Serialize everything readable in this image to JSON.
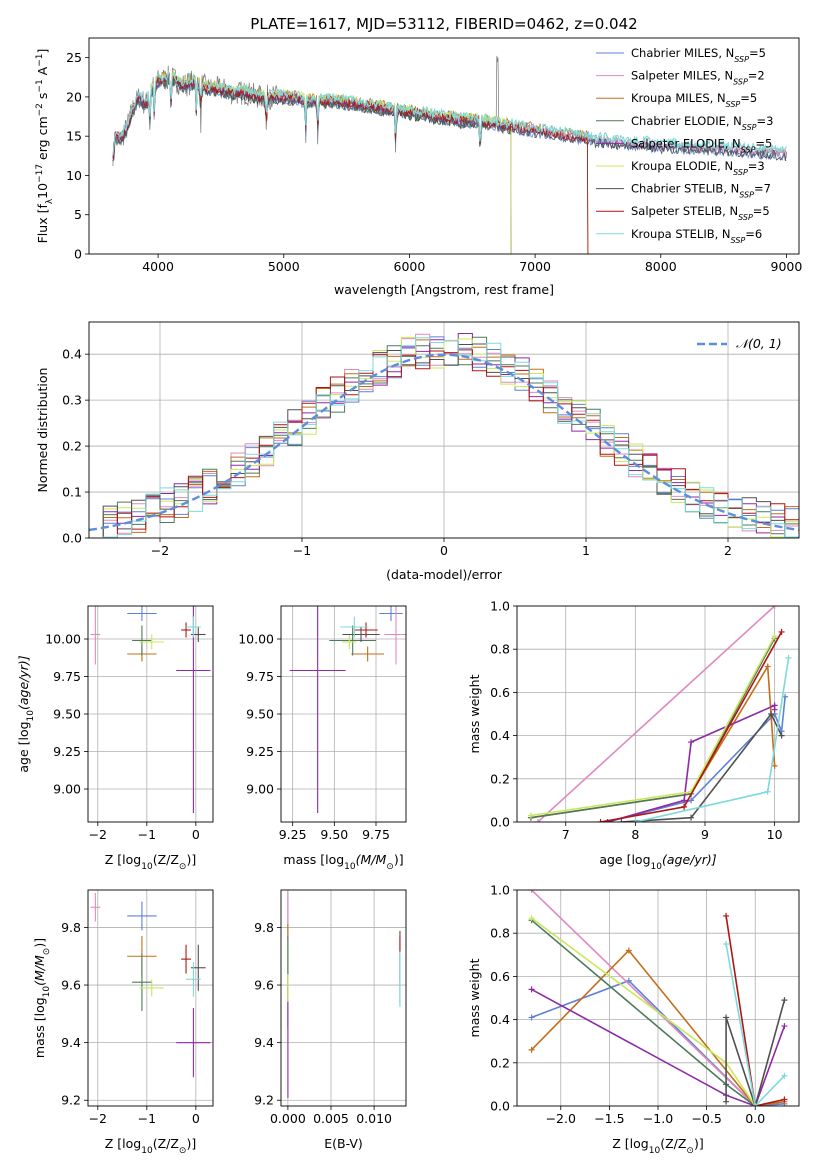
{
  "palette": {
    "chabrier_miles": "#5f82d6",
    "salpeter_miles": "#e08abf",
    "kroupa_miles": "#c46e19",
    "chabrier_elodie": "#4d7a5b",
    "salpeter_elodie": "#8e2aa6",
    "kroupa_elodie": "#c8e85a",
    "chabrier_stelib": "#505050",
    "salpeter_stelib": "#b01515",
    "kroupa_stelib": "#7fd9d9",
    "grid": "#b0b0b0",
    "gaussian": "#5b8fde"
  },
  "chart_data": [
    {
      "id": "spectrum",
      "type": "line",
      "title": "PLATE=1617, MJD=53112, FIBERID=0462, z=0.042",
      "xlabel": "wavelength [Angstrom, rest frame]",
      "ylabel": "Flux [f",
      "ylabel_sub": "λ",
      "ylabel_mid": "10",
      "ylabel_exp": "−17",
      "ylabel_end": " erg cm",
      "ylabel_exp2": "−2",
      "ylabel_s": " s",
      "ylabel_exp3": "−1",
      "ylabel_A": " A",
      "ylabel_exp4": "−1",
      "ylabel_close": "]",
      "xlim": [
        3450,
        9100
      ],
      "ylim": [
        0,
        27.5
      ],
      "xticks": [
        "4000",
        "5000",
        "6000",
        "7000",
        "8000",
        "9000"
      ],
      "yticks": [
        "0",
        "5",
        "10",
        "15",
        "20",
        "25"
      ],
      "grid": false,
      "legend_position": "top-right",
      "legend": [
        {
          "label": "Chabrier MILES, N",
          "sub": "SSP",
          "val": "=5",
          "color_key": "chabrier_miles"
        },
        {
          "label": "Salpeter MILES, N",
          "sub": "SSP",
          "val": "=2",
          "color_key": "salpeter_miles"
        },
        {
          "label": "Kroupa MILES, N",
          "sub": "SSP",
          "val": "=5",
          "color_key": "kroupa_miles"
        },
        {
          "label": "Chabrier ELODIE, N",
          "sub": "SSP",
          "val": "=3",
          "color_key": "chabrier_elodie"
        },
        {
          "label": "Salpeter ELODIE, N",
          "sub": "SSP",
          "val": "=5",
          "color_key": "salpeter_elodie"
        },
        {
          "label": "Kroupa ELODIE, N",
          "sub": "SSP",
          "val": "=3",
          "color_key": "kroupa_elodie"
        },
        {
          "label": "Chabrier STELIB, N",
          "sub": "SSP",
          "val": "=7",
          "color_key": "chabrier_stelib"
        },
        {
          "label": "Salpeter STELIB, N",
          "sub": "SSP",
          "val": "=5",
          "color_key": "salpeter_stelib"
        },
        {
          "label": "Kroupa STELIB, N",
          "sub": "SSP",
          "val": "=6",
          "color_key": "kroupa_stelib"
        }
      ],
      "data_series": {
        "observed": {
          "x": [
            3650,
            3700,
            3750,
            3800,
            3850,
            3900,
            3950,
            4000,
            4100,
            4200,
            4300,
            4400,
            4500,
            4600,
            4700,
            4800,
            4900,
            5000,
            5100,
            5200,
            5300,
            5400,
            5500,
            5600,
            5700,
            5800,
            5900,
            6000,
            6100,
            6200,
            6300,
            6400,
            6500,
            6600,
            6700,
            6800,
            6900,
            7000,
            7100,
            7200,
            7300,
            7400,
            7500,
            7600,
            7700,
            7800,
            7900,
            8000,
            8100,
            8200,
            8300,
            8400,
            8500,
            8600,
            8700,
            8800,
            8900,
            9000
          ],
          "y": [
            15.0,
            14.5,
            16.0,
            18.5,
            20.0,
            19.0,
            21.0,
            22.0,
            22.5,
            21.5,
            22.0,
            21.0,
            21.0,
            20.5,
            20.5,
            20.0,
            20.0,
            20.0,
            19.8,
            19.5,
            19.5,
            19.5,
            19.2,
            19.0,
            18.8,
            18.5,
            18.3,
            18.0,
            17.8,
            17.5,
            17.3,
            17.0,
            17.0,
            16.8,
            16.5,
            16.2,
            16.0,
            15.8,
            15.5,
            15.2,
            15.0,
            14.8,
            14.5,
            14.4,
            14.2,
            14.0,
            14.0,
            13.8,
            13.8,
            13.6,
            13.5,
            13.5,
            13.4,
            13.3,
            13.2,
            13.0,
            13.0,
            12.8
          ]
        }
      }
    },
    {
      "id": "residuals",
      "type": "histogram",
      "xlabel": "(data-model)/error",
      "ylabel": "Normed distribution",
      "xlim": [
        -2.5,
        2.5
      ],
      "ylim": [
        0,
        0.47
      ],
      "xticks": [
        "−2",
        "−1",
        "0",
        "1",
        "2"
      ],
      "yticks": [
        "0.0",
        "0.1",
        "0.2",
        "0.3",
        "0.4"
      ],
      "grid": true,
      "legend_position": "top-right",
      "legend_label": "𝒩(0, 1)"
    },
    {
      "id": "age-vs-Z",
      "type": "scatter",
      "xlabel": "Z [log",
      "xlabel_sub": "10",
      "xlabel_rest": "(Z/Z",
      "xlabel_sun": "⊙",
      "xlabel_close": ")]",
      "ylabel": "age  [log",
      "ylabel_sub": "10",
      "ylabel_rest": "(age/yr)]",
      "xlim": [
        -2.2,
        0.35
      ],
      "ylim": [
        8.78,
        10.22
      ],
      "xticks": [
        "−2",
        "−1",
        "0"
      ],
      "yticks": [
        "9.00",
        "9.25",
        "9.50",
        "9.75",
        "10.00"
      ],
      "grid": true
    },
    {
      "id": "age-vs-mass",
      "type": "scatter",
      "xlabel": "mass [log",
      "xlabel_sub": "10",
      "xlabel_rest": "(M/M",
      "xlabel_sun": "⊙",
      "xlabel_close": ")]",
      "xlim": [
        9.18,
        9.93
      ],
      "ylim": [
        8.78,
        10.22
      ],
      "xticks": [
        "9.25",
        "9.50",
        "9.75"
      ],
      "yticks": [
        "9.00",
        "9.25",
        "9.50",
        "9.75",
        "10.00"
      ],
      "grid": true
    },
    {
      "id": "massweight-vs-age",
      "type": "line",
      "xlabel": "age  [log",
      "xlabel_sub": "10",
      "xlabel_rest": "(age/yr)]",
      "ylabel": "mass weight",
      "xlim": [
        6.3,
        10.35
      ],
      "ylim": [
        0,
        1.0
      ],
      "xticks": [
        "7",
        "8",
        "9",
        "10"
      ],
      "yticks": [
        "0.0",
        "0.2",
        "0.4",
        "0.6",
        "0.8",
        "1.0"
      ],
      "grid": true
    },
    {
      "id": "mass-vs-Z",
      "type": "scatter",
      "xlabel": "Z [log",
      "xlabel_sub": "10",
      "xlabel_rest": "(Z/Z",
      "xlabel_sun": "⊙",
      "xlabel_close": ")]",
      "ylabel": "mass [log",
      "ylabel_sub": "10",
      "ylabel_rest": "(M/M",
      "ylabel_sun": "⊙",
      "ylabel_close": ")]",
      "xlim": [
        -2.2,
        0.35
      ],
      "ylim": [
        9.18,
        9.93
      ],
      "xticks": [
        "−2",
        "−1",
        "0"
      ],
      "yticks": [
        "9.2",
        "9.4",
        "9.6",
        "9.8"
      ],
      "grid": true
    },
    {
      "id": "mass-vs-ebv",
      "type": "scatter",
      "xlabel": "E(B-V)",
      "xlim": [
        -0.0008,
        0.0137
      ],
      "ylim": [
        9.18,
        9.93
      ],
      "xticks": [
        "0.000",
        "0.005",
        "0.010"
      ],
      "yticks": [
        "9.2",
        "9.4",
        "9.6",
        "9.8"
      ],
      "grid": true
    },
    {
      "id": "massweight-vs-Z",
      "type": "line",
      "xlabel": "Z [log",
      "xlabel_sub": "10",
      "xlabel_rest": "(Z/Z",
      "xlabel_sun": "⊙",
      "xlabel_close": ")]",
      "ylabel": "mass weight",
      "xlim": [
        -2.45,
        0.45
      ],
      "ylim": [
        0,
        1.0
      ],
      "xticks": [
        "−2.0",
        "−1.5",
        "−1.0",
        "−0.5",
        "0.0"
      ],
      "yticks": [
        "0.0",
        "0.2",
        "0.4",
        "0.6",
        "0.8",
        "1.0"
      ],
      "grid": true
    }
  ]
}
